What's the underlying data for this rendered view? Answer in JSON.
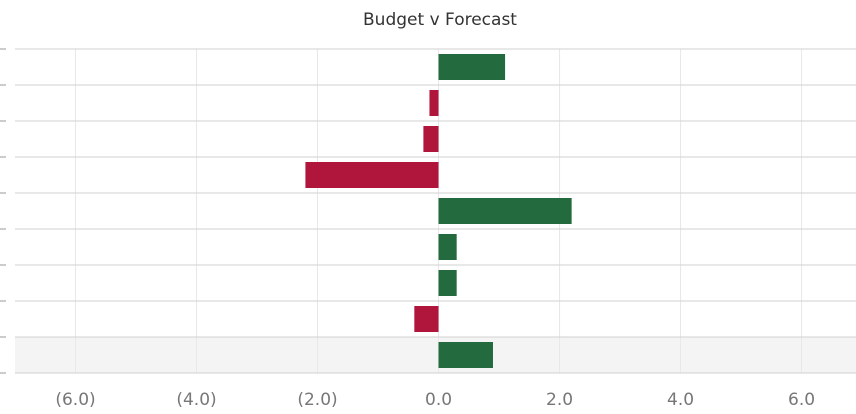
{
  "chart_data": {
    "type": "bar",
    "orientation": "horizontal",
    "title": "Budget v Forecast",
    "categories": [
      null,
      null,
      null,
      null,
      null,
      null,
      null,
      null,
      null
    ],
    "values": [
      1.1,
      -0.15,
      -0.25,
      -2.2,
      2.2,
      0.3,
      0.3,
      -0.4,
      0.9
    ],
    "positive_color": "#236b3e",
    "negative_color": "#b0153c",
    "xlim": [
      -7,
      6.9
    ],
    "xticks": [
      {
        "value": -6,
        "label": "(6.0)"
      },
      {
        "value": -4,
        "label": "(4.0)"
      },
      {
        "value": -2,
        "label": "(2.0)"
      },
      {
        "value": 0,
        "label": "0.0"
      },
      {
        "value": 2,
        "label": "2.0"
      },
      {
        "value": 4,
        "label": "4.0"
      },
      {
        "value": 6,
        "label": "6.0"
      }
    ],
    "grid": true
  }
}
